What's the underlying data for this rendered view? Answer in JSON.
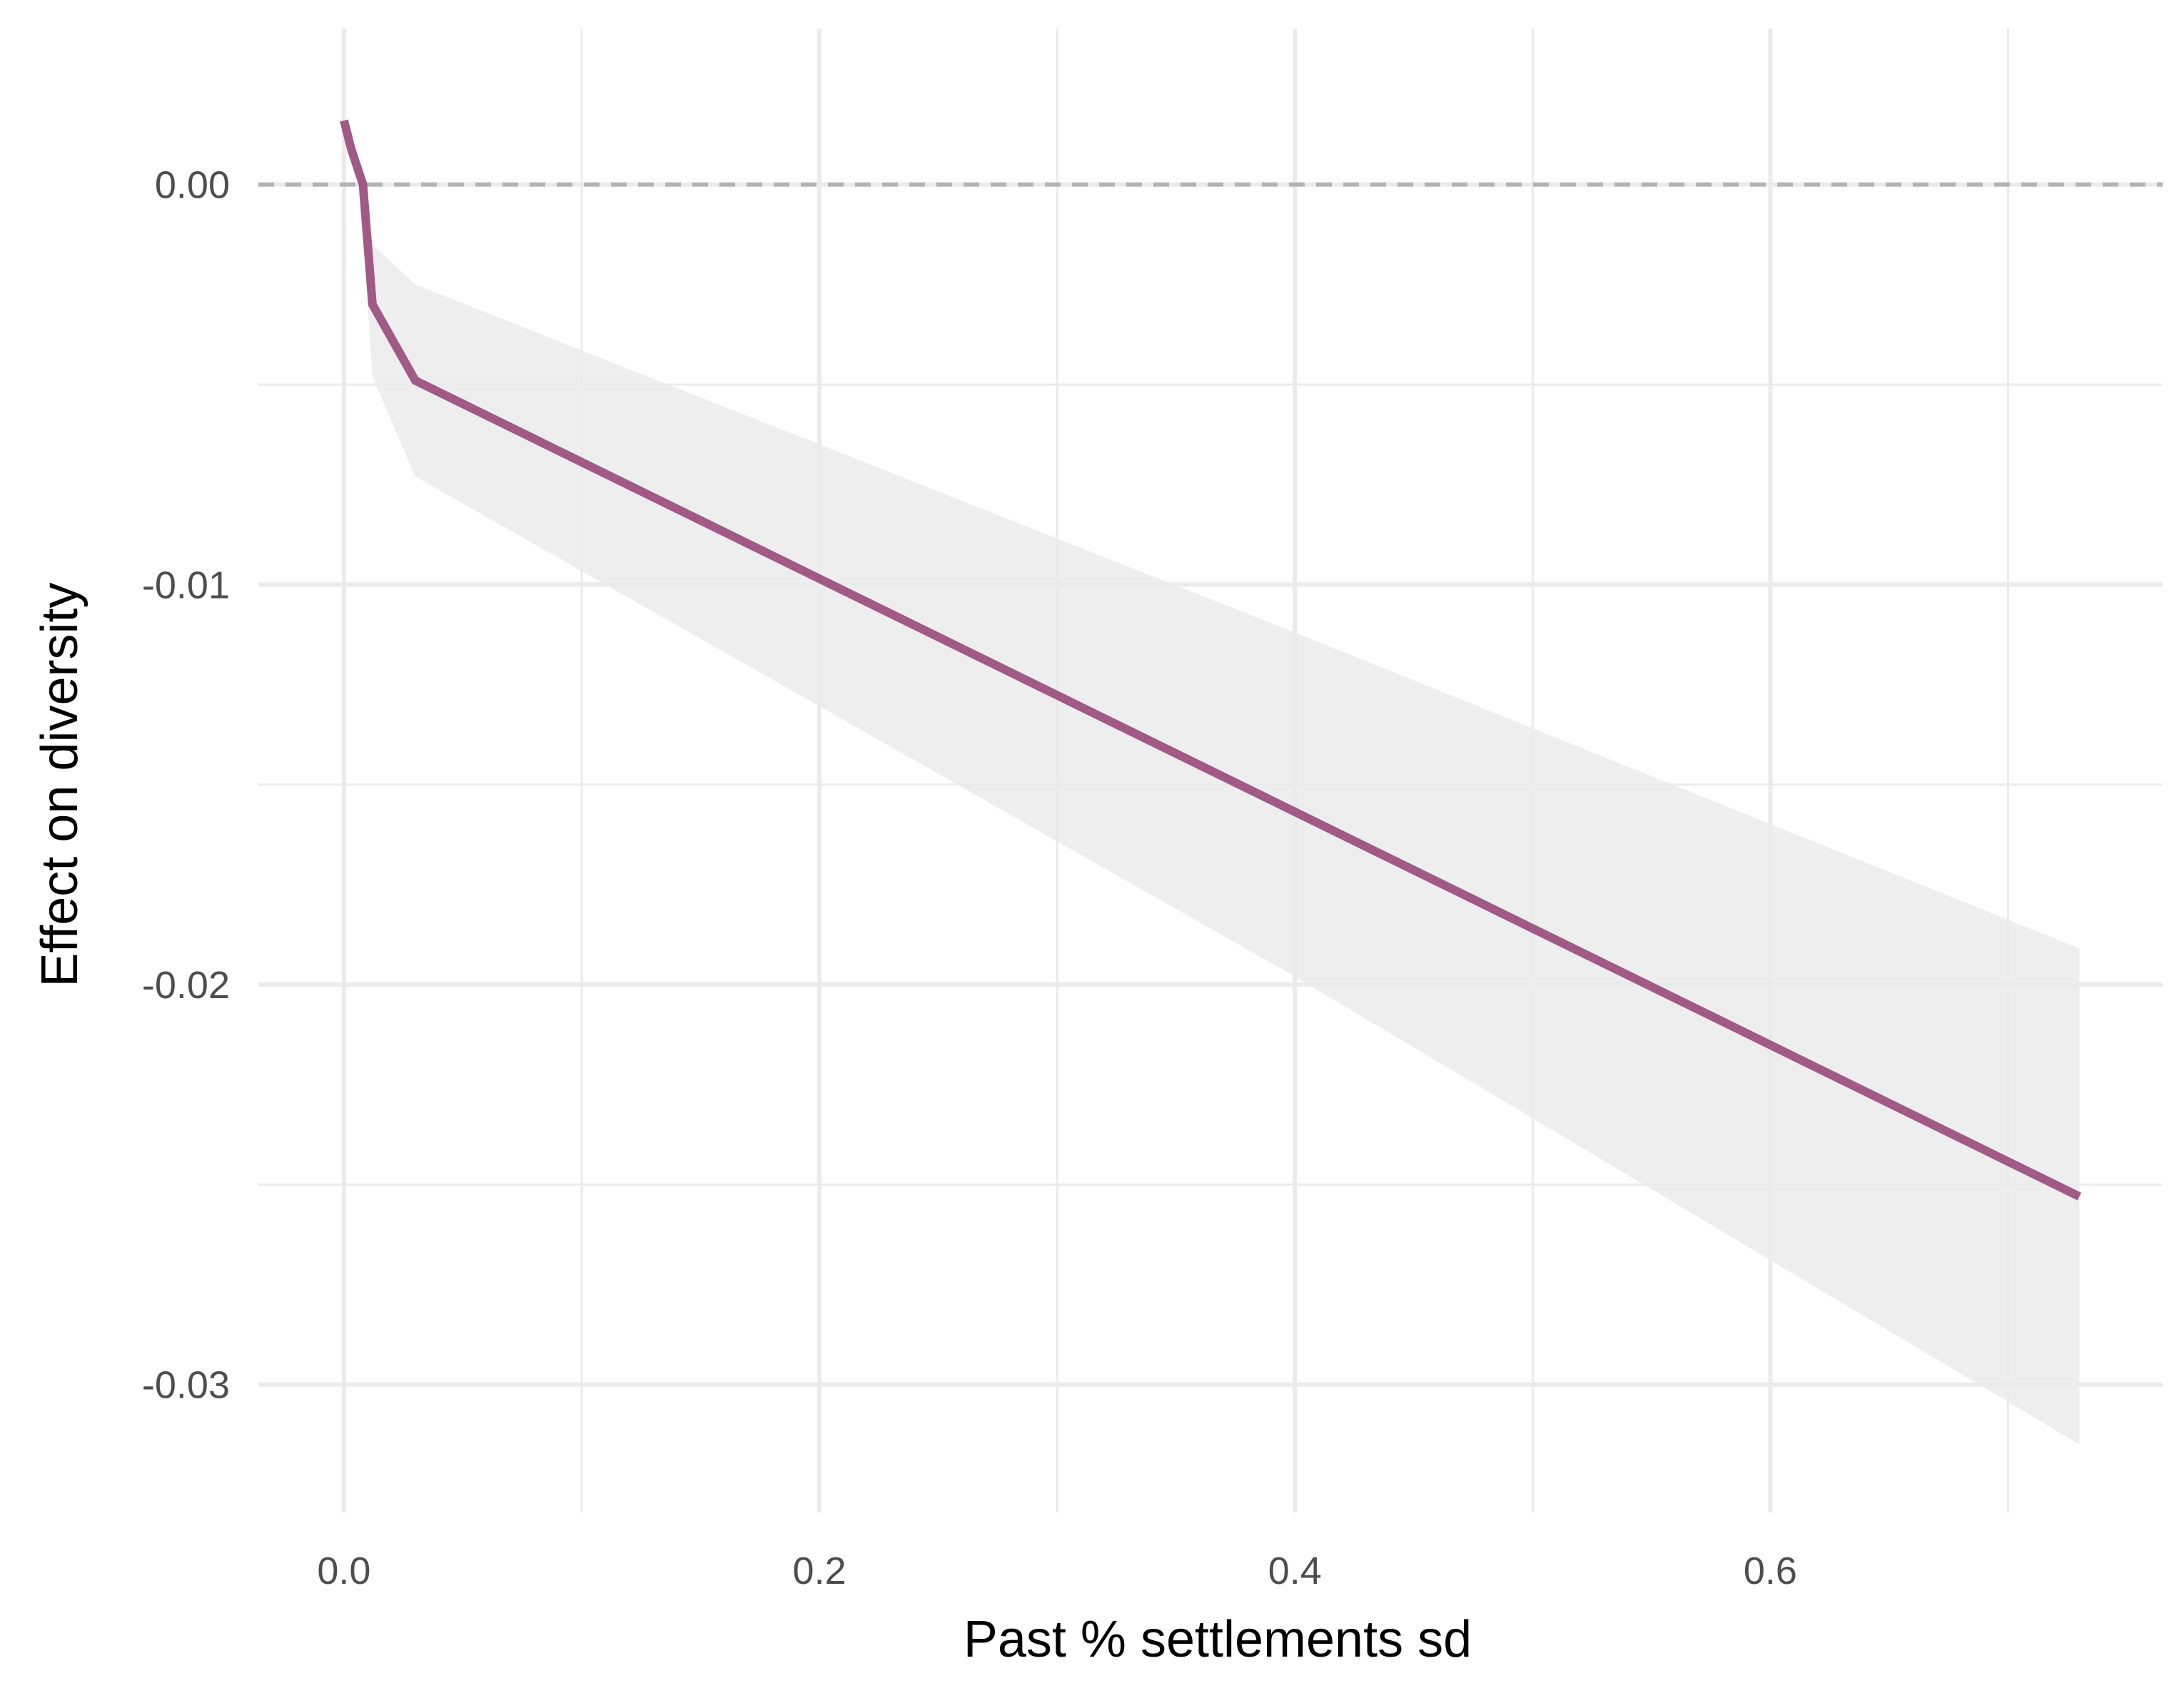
{
  "chart_data": {
    "type": "line",
    "title": "",
    "xlabel": "Past % settlements sd",
    "ylabel": "Effect on diversity",
    "xlim": [
      -0.036,
      0.765
    ],
    "ylim": [
      -0.0332,
      0.0039
    ],
    "x_ticks": [
      0.0,
      0.2,
      0.4,
      0.6
    ],
    "x_tick_labels": [
      "0.0",
      "0.2",
      "0.4",
      "0.6"
    ],
    "x_minor_ticks": [
      0.1,
      0.3,
      0.5,
      0.7
    ],
    "y_ticks": [
      0.0,
      -0.01,
      -0.02,
      -0.03
    ],
    "y_tick_labels": [
      "0.00",
      "-0.01",
      "-0.02",
      "-0.03"
    ],
    "y_minor_ticks": [
      -0.005,
      -0.015,
      -0.025
    ],
    "grid": true,
    "reference_line": {
      "y": 0,
      "style": "dashed",
      "color": "#b3b3b3"
    },
    "series": [
      {
        "color": "#a15a85",
        "points": [
          {
            "x": 0.0,
            "y": 0.0016
          },
          {
            "x": 0.003,
            "y": 0.0009
          },
          {
            "x": 0.008,
            "y": 0.0
          },
          {
            "x": 0.012,
            "y": -0.003
          },
          {
            "x": 0.03,
            "y": -0.0049
          },
          {
            "x": 0.73,
            "y": -0.0253
          }
        ]
      }
    ],
    "ribbon": {
      "color": "#ebebeb",
      "points": [
        {
          "x": 0.008,
          "lower": -0.0012,
          "upper": -0.0012
        },
        {
          "x": 0.012,
          "lower": -0.0048,
          "upper": -0.0015
        },
        {
          "x": 0.03,
          "lower": -0.0073,
          "upper": -0.0025
        },
        {
          "x": 0.4,
          "lower": -0.0198,
          "upper": -0.0112
        },
        {
          "x": 0.73,
          "lower": -0.0315,
          "upper": -0.0191
        }
      ]
    }
  }
}
